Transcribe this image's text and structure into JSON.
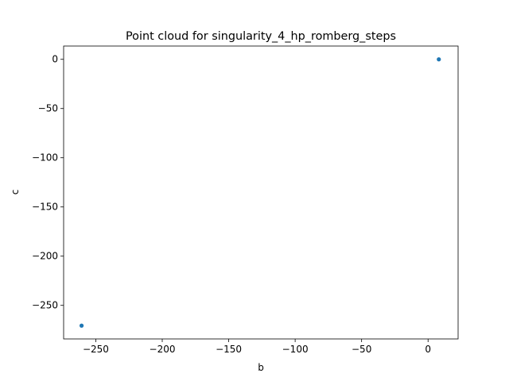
{
  "chart_data": {
    "type": "scatter",
    "title": "Point cloud for singularity_4_hp_romberg_steps",
    "xlabel": "b",
    "ylabel": "c",
    "xlim": [
      -274.2,
      22.6
    ],
    "ylim": [
      -284.1,
      13.5
    ],
    "xticks": [
      -250,
      -200,
      -150,
      -100,
      -50,
      0
    ],
    "yticks": [
      0,
      -50,
      -100,
      -150,
      -200,
      -250
    ],
    "grid": false,
    "marker_color": "#1f77b4",
    "series": [
      {
        "points": [
          {
            "x": -260.7,
            "y": -270.6
          },
          {
            "x": 8.1,
            "y": 0.0
          }
        ]
      }
    ]
  }
}
